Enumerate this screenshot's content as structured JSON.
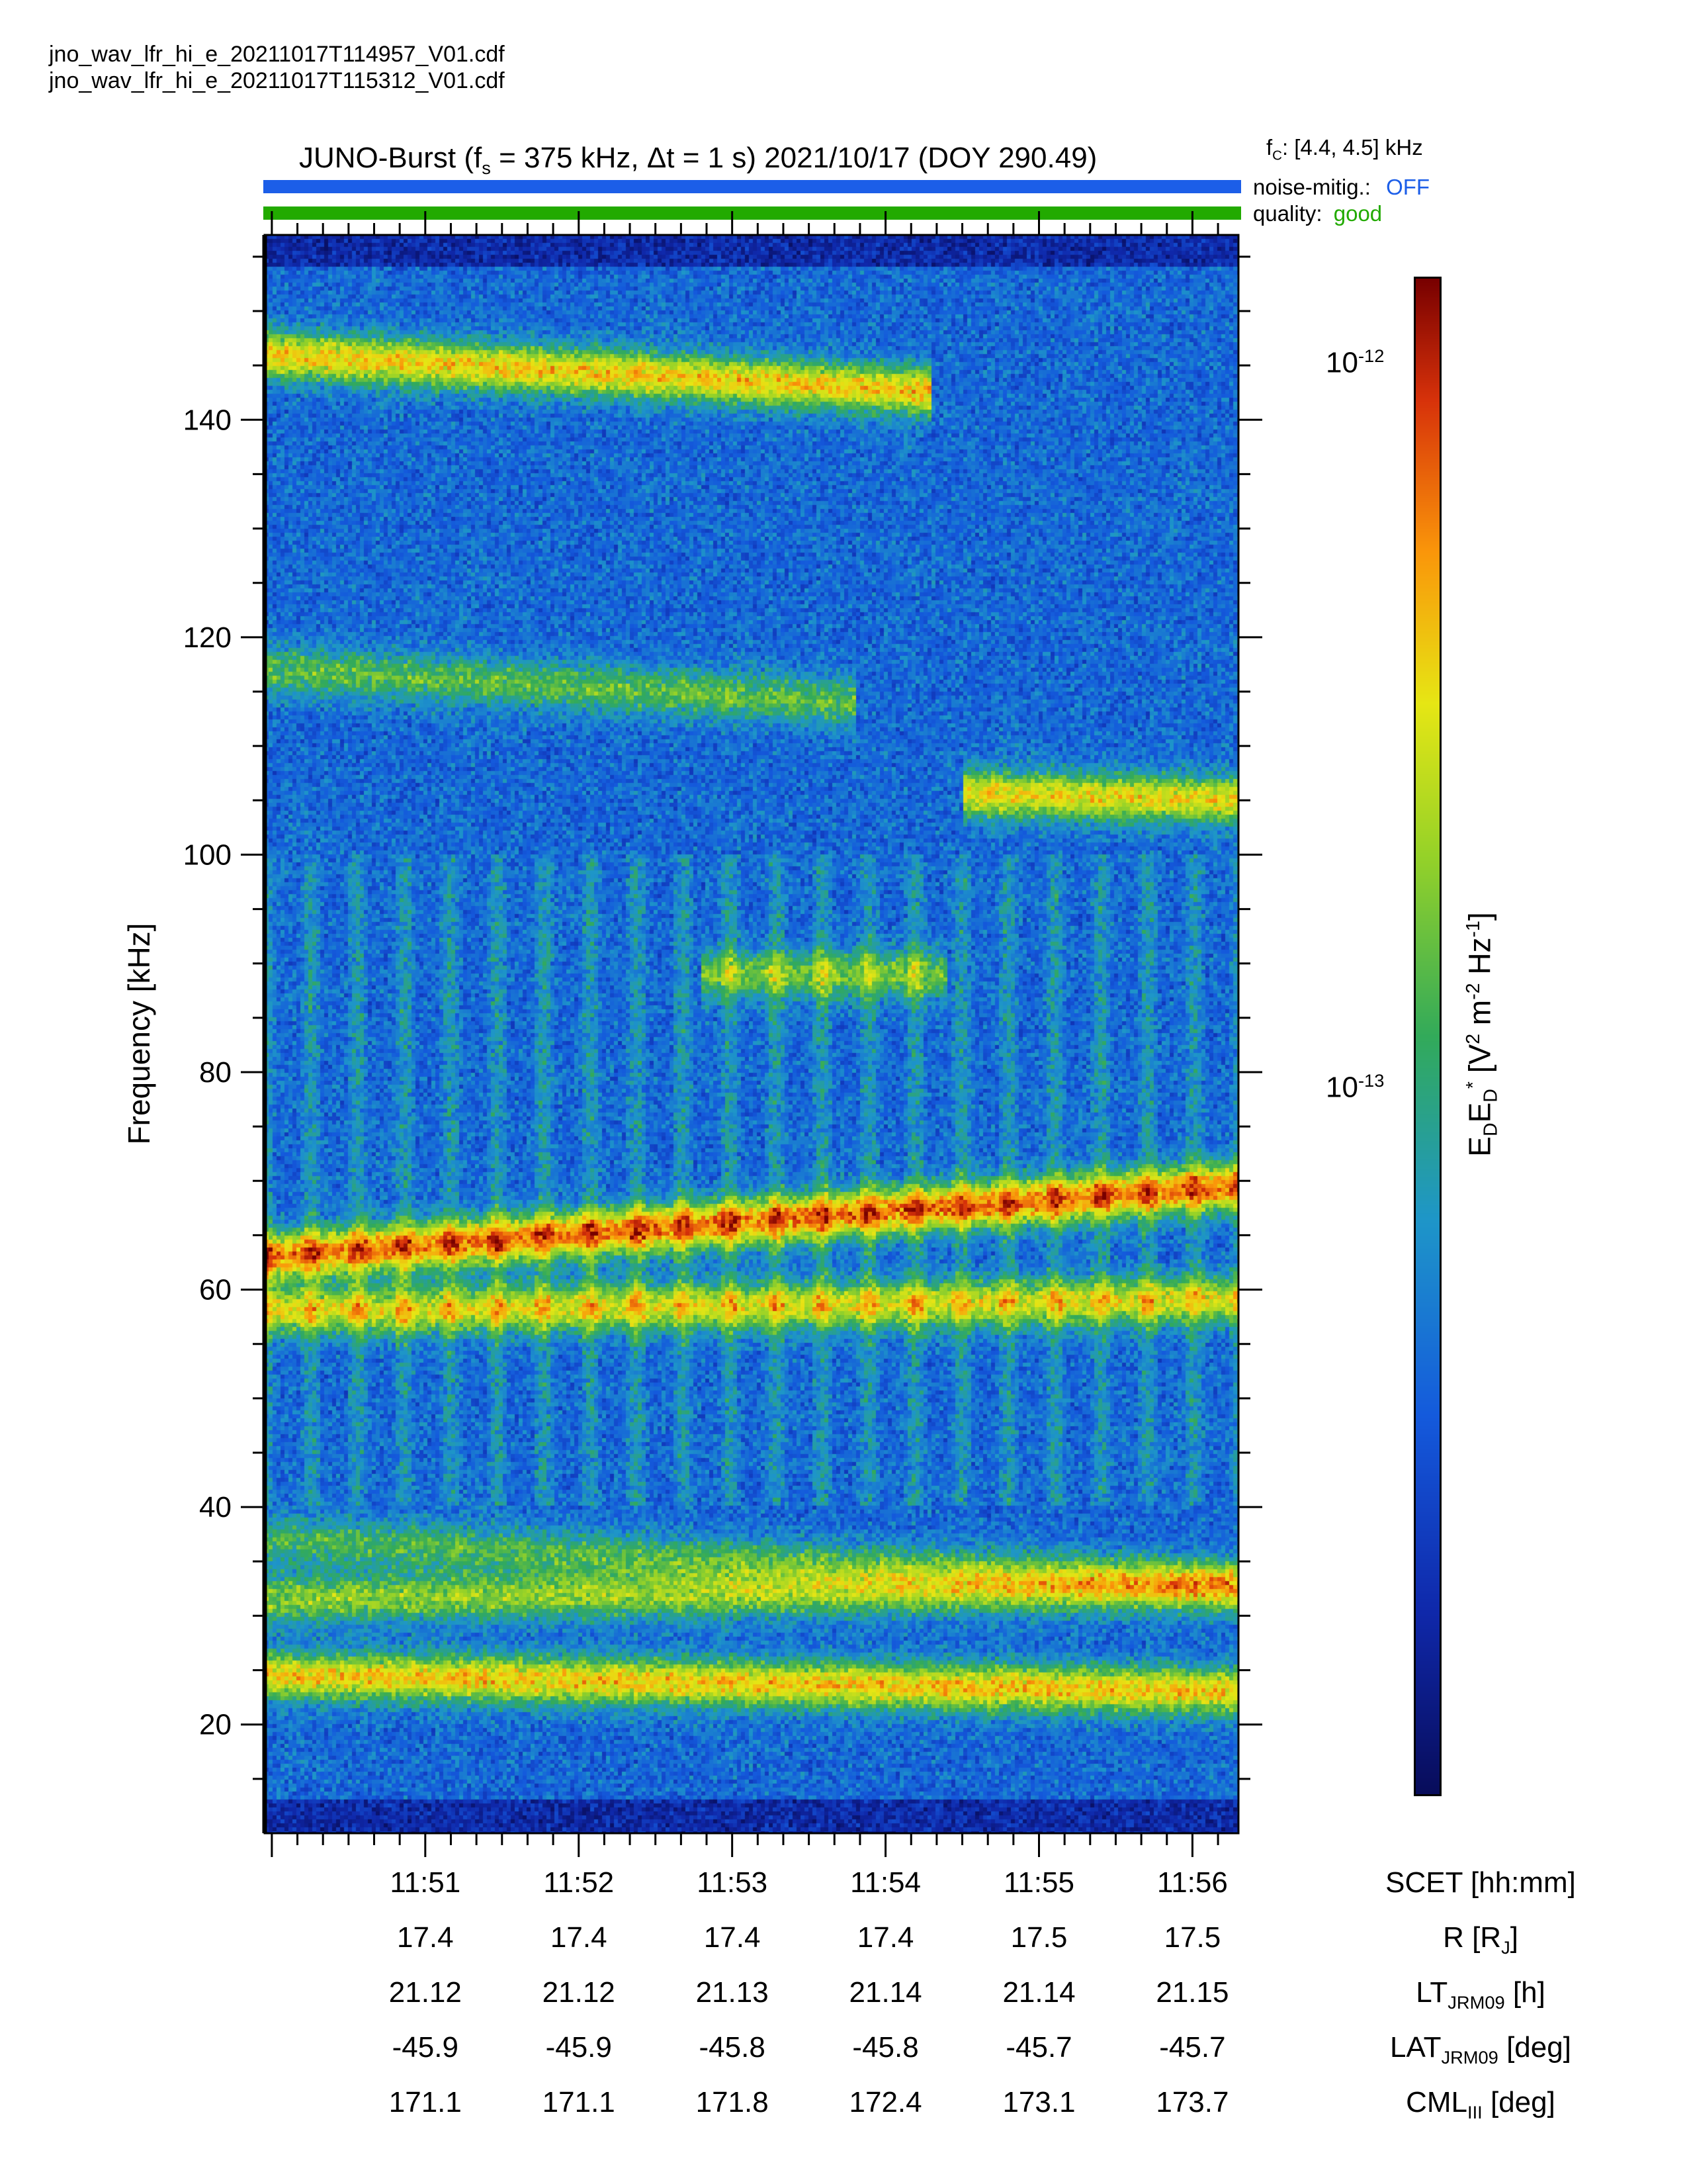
{
  "files": [
    "jno_wav_lfr_hi_e_20211017T114957_V01.cdf",
    "jno_wav_lfr_hi_e_20211017T115312_V01.cdf"
  ],
  "title": {
    "prefix": "JUNO-Burst (f",
    "fs_sub": "s",
    "mid": " = 375 kHz, Δt = 1 s)  2021/10/17 (DOY 290.49)"
  },
  "status": {
    "fc_label": "f",
    "fc_sub": "C",
    "fc_value": ": [4.4, 4.5] kHz",
    "noise_label": "noise-mitig.:",
    "noise_value": "OFF",
    "quality_label": "quality:",
    "quality_value": "good",
    "noise_color": "#1c5ee8",
    "quality_color": "#22aa00"
  },
  "chart_data": {
    "type": "heatmap",
    "title": "",
    "ylabel": "Frequency [kHz]",
    "ylim": [
      10,
      157
    ],
    "yticks": [
      20,
      40,
      60,
      80,
      100,
      120,
      140
    ],
    "x_start_min": 49.953,
    "x_end_min": 56.3,
    "x_ticks": [
      "11:51",
      "11:52",
      "11:53",
      "11:54",
      "11:55",
      "11:56"
    ],
    "x_tick_minutes": [
      51,
      52,
      53,
      54,
      55,
      56
    ],
    "colorbar": {
      "label_main": "E",
      "scale": "log",
      "ticks": [
        "10-12",
        "10-13"
      ],
      "tick_values": [
        1e-12,
        1e-13
      ]
    },
    "emission_bands": [
      {
        "name": "band-145",
        "f_start": 146,
        "f_end": 141,
        "t_end": 54.3,
        "intensity": 0.8
      },
      {
        "name": "band-118",
        "f_start": 117,
        "f_end": 112,
        "t_end": 53.8,
        "intensity": 0.45
      },
      {
        "name": "band-106",
        "f_start": 107,
        "f_end": 105,
        "t_start": 54.5,
        "intensity": 0.75
      },
      {
        "name": "band-89",
        "f_start": 89,
        "f_end": 89,
        "t_start": 52.8,
        "t_end": 54.4,
        "intensity": 0.5
      },
      {
        "name": "band-67",
        "f_start": 63,
        "f_end": 69.5,
        "intensity": 0.95
      },
      {
        "name": "band-59",
        "f_start": 58,
        "f_end": 59,
        "intensity": 0.7
      },
      {
        "name": "band-37",
        "f_start": 37,
        "f_end": 33,
        "intensity": 0.4
      },
      {
        "name": "band-31",
        "f_start": 31.5,
        "f_end": 32.5,
        "intensity": 0.55
      },
      {
        "name": "band-24",
        "f_start": 24.5,
        "f_end": 23,
        "intensity": 0.8
      }
    ],
    "ephemeris": [
      {
        "label": "SCET [hh:mm]",
        "values": [
          "11:51",
          "11:52",
          "11:53",
          "11:54",
          "11:55",
          "11:56"
        ]
      },
      {
        "label": "R [R",
        "values": [
          "17.4",
          "17.4",
          "17.4",
          "17.4",
          "17.5",
          "17.5"
        ]
      },
      {
        "label": "LT",
        "values": [
          "21.12",
          "21.12",
          "21.13",
          "21.14",
          "21.14",
          "21.15"
        ]
      },
      {
        "label": "LAT",
        "values": [
          "-45.9",
          "-45.9",
          "-45.8",
          "-45.8",
          "-45.7",
          "-45.7"
        ]
      },
      {
        "label": "CML",
        "values": [
          "171.1",
          "171.1",
          "171.8",
          "172.4",
          "173.1",
          "173.7"
        ]
      }
    ],
    "ephemeris_label_parts": {
      "r_sub": "J",
      "r_tail": "]",
      "lt_sub": "JRM09",
      "lt_tail": " [h]",
      "lat_sub": "JRM09",
      "lat_tail": " [deg]",
      "cml_sub": "III",
      "cml_tail": " [deg]"
    },
    "colorbar_label_parts": {
      "e1": "E",
      "d1": "D",
      "e2": "E",
      "d2": "D",
      "star": "*",
      "units_a": " [V",
      "sup2": "2",
      "units_b": " m",
      "supm2": "-2",
      "units_c": " Hz",
      "supm1": "-1",
      "units_d": "]"
    }
  }
}
